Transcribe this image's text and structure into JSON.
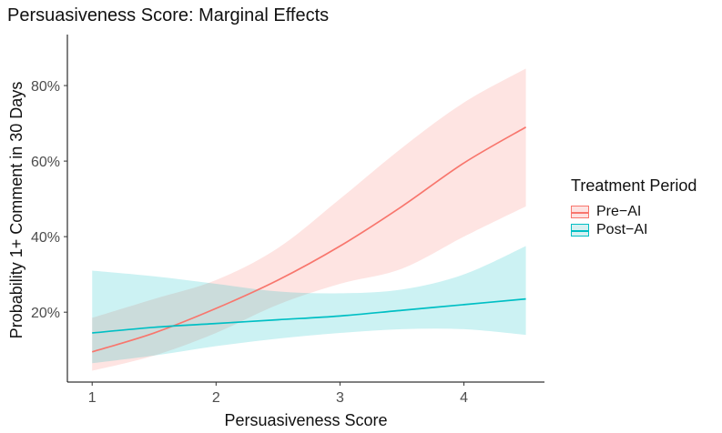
{
  "chart_data": {
    "type": "line",
    "title": "Persuasiveness Score: Marginal Effects",
    "xlabel": "Persuasiveness Score",
    "ylabel": "Probability 1+ Comment in 30 Days",
    "xlim": [
      0.8,
      4.65
    ],
    "ylim": [
      0.015,
      0.935
    ],
    "x_ticks": [
      1,
      2,
      3,
      4
    ],
    "x_tick_labels": [
      "1",
      "2",
      "3",
      "4"
    ],
    "y_ticks": [
      0.2,
      0.4,
      0.6,
      0.8
    ],
    "y_tick_labels": [
      "20%",
      "40%",
      "60%",
      "80%"
    ],
    "grid": false,
    "legend_title": "Treatment Period",
    "legend_position": "right",
    "series": [
      {
        "name": "Pre−AI",
        "color": "#F8766D",
        "fill": "#FDE3E2",
        "x": [
          1.0,
          1.5,
          2.0,
          2.5,
          3.0,
          3.5,
          4.0,
          4.5
        ],
        "y": [
          0.095,
          0.145,
          0.21,
          0.285,
          0.375,
          0.48,
          0.595,
          0.69
        ],
        "lower": [
          0.045,
          0.085,
          0.145,
          0.22,
          0.275,
          0.315,
          0.4,
          0.48
        ],
        "upper": [
          0.185,
          0.235,
          0.285,
          0.37,
          0.5,
          0.635,
          0.755,
          0.845
        ]
      },
      {
        "name": "Post−AI",
        "color": "#00BFC4",
        "fill": "#D6F0F1",
        "x": [
          1.0,
          1.5,
          2.0,
          2.5,
          3.0,
          3.5,
          4.0,
          4.5
        ],
        "y": [
          0.145,
          0.16,
          0.17,
          0.18,
          0.19,
          0.205,
          0.22,
          0.235
        ],
        "lower": [
          0.065,
          0.085,
          0.11,
          0.13,
          0.145,
          0.155,
          0.155,
          0.14
        ],
        "upper": [
          0.31,
          0.295,
          0.275,
          0.255,
          0.25,
          0.26,
          0.3,
          0.375
        ]
      }
    ]
  }
}
